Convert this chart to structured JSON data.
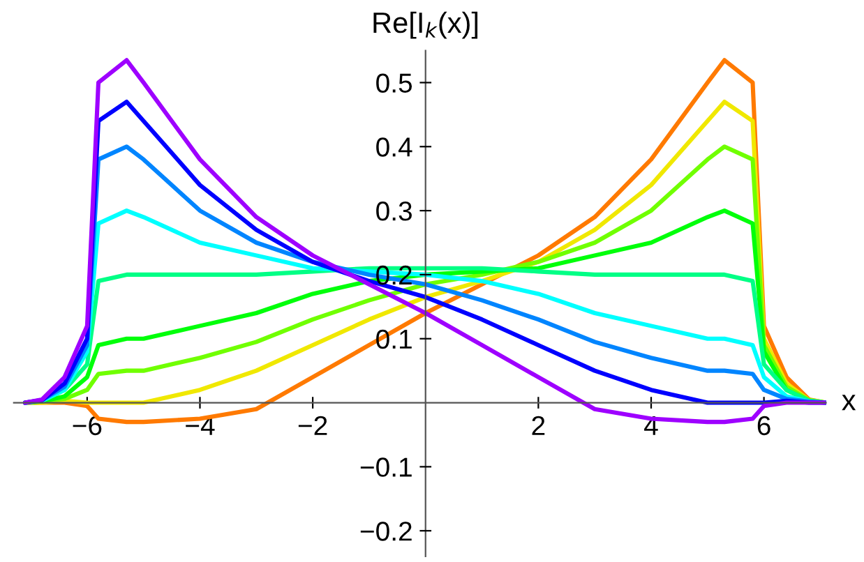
{
  "chart_data": {
    "type": "line",
    "xlabel": "x",
    "ylabel": "Re[I$_{k}$(x)]",
    "x": [
      -7.1,
      -6.8,
      -6.4,
      -6.0,
      -5.8,
      -5.3,
      -5.0,
      -4.0,
      -3.0,
      -2.0,
      -1.0,
      0,
      1.0,
      2.0,
      3.0,
      4.0,
      5.0,
      5.3,
      5.8,
      6.0,
      6.4,
      6.8,
      7.1
    ],
    "series": [
      {
        "color": "#ff7a00",
        "values": [
          0,
          0,
          0,
          -0.005,
          -0.025,
          -0.03,
          -0.03,
          -0.025,
          -0.01,
          0.04,
          0.09,
          0.14,
          0.185,
          0.23,
          0.29,
          0.38,
          0.5,
          0.535,
          0.5,
          0.12,
          0.04,
          0.005,
          0
        ]
      },
      {
        "color": "#f0e800",
        "values": [
          0,
          0,
          0.003,
          0,
          0,
          0,
          0,
          0.02,
          0.05,
          0.09,
          0.13,
          0.165,
          0.19,
          0.22,
          0.27,
          0.34,
          0.44,
          0.47,
          0.44,
          0.1,
          0.03,
          0.004,
          0
        ]
      },
      {
        "color": "#70ff00",
        "values": [
          0,
          0.002,
          0.006,
          0.02,
          0.045,
          0.05,
          0.05,
          0.07,
          0.095,
          0.13,
          0.16,
          0.185,
          0.2,
          0.22,
          0.25,
          0.3,
          0.38,
          0.4,
          0.38,
          0.09,
          0.025,
          0.004,
          0
        ]
      },
      {
        "color": "#00ff0a",
        "values": [
          0,
          0.002,
          0.01,
          0.04,
          0.09,
          0.1,
          0.1,
          0.12,
          0.14,
          0.17,
          0.19,
          0.2,
          0.205,
          0.21,
          0.23,
          0.25,
          0.29,
          0.3,
          0.28,
          0.08,
          0.02,
          0.003,
          0
        ]
      },
      {
        "color": "#00ff85",
        "values": [
          0,
          0.003,
          0.02,
          0.06,
          0.19,
          0.2,
          0.2,
          0.2,
          0.2,
          0.205,
          0.21,
          0.21,
          0.21,
          0.205,
          0.2,
          0.2,
          0.2,
          0.2,
          0.19,
          0.06,
          0.02,
          0.003,
          0
        ]
      },
      {
        "color": "#00ffff",
        "values": [
          0,
          0.003,
          0.02,
          0.08,
          0.28,
          0.3,
          0.29,
          0.25,
          0.23,
          0.21,
          0.205,
          0.2,
          0.19,
          0.17,
          0.14,
          0.12,
          0.1,
          0.1,
          0.09,
          0.04,
          0.01,
          0.002,
          0
        ]
      },
      {
        "color": "#0085ff",
        "values": [
          0,
          0.004,
          0.025,
          0.09,
          0.38,
          0.4,
          0.38,
          0.3,
          0.25,
          0.22,
          0.2,
          0.185,
          0.16,
          0.13,
          0.095,
          0.07,
          0.05,
          0.05,
          0.045,
          0.02,
          0.006,
          0.002,
          0
        ]
      },
      {
        "color": "#0000ff",
        "values": [
          0,
          0.004,
          0.03,
          0.1,
          0.44,
          0.47,
          0.44,
          0.34,
          0.27,
          0.22,
          0.19,
          0.165,
          0.13,
          0.09,
          0.05,
          0.02,
          0,
          0,
          0,
          0,
          0.003,
          0,
          0
        ]
      },
      {
        "color": "#9e00ff",
        "values": [
          0,
          0.005,
          0.04,
          0.12,
          0.5,
          0.535,
          0.5,
          0.38,
          0.29,
          0.23,
          0.185,
          0.14,
          0.09,
          0.04,
          -0.01,
          -0.025,
          -0.03,
          -0.03,
          -0.025,
          -0.005,
          0,
          0,
          0
        ]
      }
    ],
    "xlim": [
      -7.3,
      7.1
    ],
    "ylim": [
      -0.24,
      0.55
    ],
    "xticks": [
      {
        "value": -6,
        "label": "−6"
      },
      {
        "value": -4,
        "label": "−4"
      },
      {
        "value": -2,
        "label": "−2"
      },
      2,
      4,
      6
    ],
    "yticks": [
      {
        "value": -0.2,
        "label": "−0.2"
      },
      {
        "value": -0.1,
        "label": "−0.1"
      },
      0.1,
      0.2,
      0.3,
      0.4,
      0.5
    ],
    "grid": false,
    "legend": false
  }
}
